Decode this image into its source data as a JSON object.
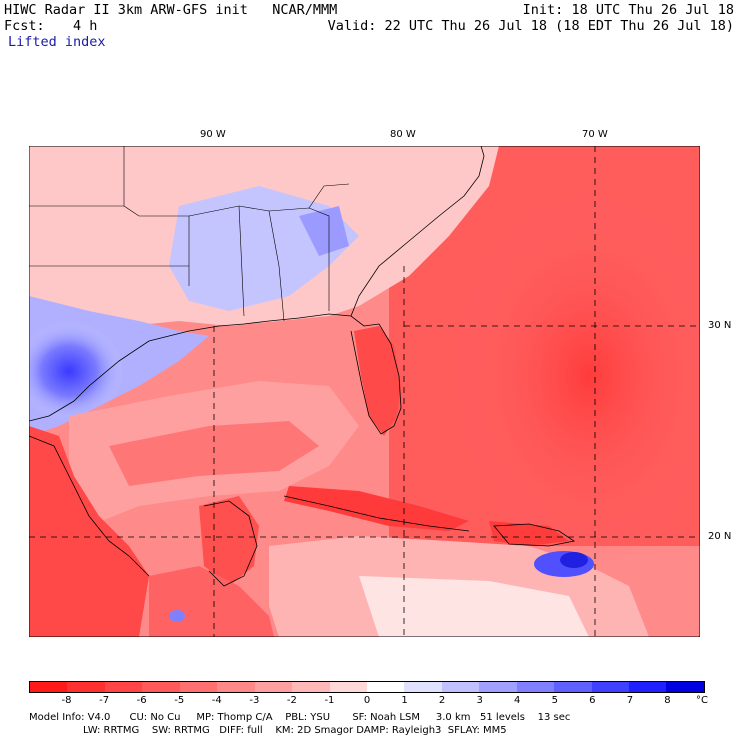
{
  "header": {
    "title": "HIWC Radar II 3km ARW-GFS init   NCAR/MMM",
    "init": "Init: 18 UTC Thu 26 Jul 18",
    "fcst_label": "Fcst:",
    "fcst_value": "4 h",
    "valid": "Valid: 22 UTC Thu 26 Jul 18 (18 EDT Thu 26 Jul 18)",
    "field": "Lifted index"
  },
  "map": {
    "lon_labels": [
      "90 W",
      "80 W",
      "70 W"
    ],
    "lat_labels": [
      "30 N",
      "20 N"
    ]
  },
  "colorbar": {
    "ticks": [
      "-8",
      "-7",
      "-6",
      "-5",
      "-4",
      "-3",
      "-2",
      "-1",
      "0",
      "1",
      "2",
      "3",
      "4",
      "5",
      "6",
      "7",
      "8"
    ],
    "unit": "°C",
    "colors": [
      "#ff1a1a",
      "#ff3030",
      "#ff4545",
      "#ff5a5a",
      "#ff7070",
      "#ff8888",
      "#ffa0a0",
      "#ffb8b8",
      "#ffd8d8",
      "#ffffff",
      "#e0e0ff",
      "#c0c0ff",
      "#a0a0ff",
      "#8080ff",
      "#6060ff",
      "#4040ff",
      "#2020ff",
      "#0000e0"
    ]
  },
  "footer": {
    "line1": "Model Info: V4.0      CU: No Cu     MP: Thomp C/A    PBL: YSU       SF: Noah LSM     3.0 km   51 levels    13 sec",
    "line2": "                 LW: RRTMG    SW: RRTMG   DIFF: full    KM: 2D Smagor DAMP: Rayleigh3  SFLAY: MM5"
  }
}
